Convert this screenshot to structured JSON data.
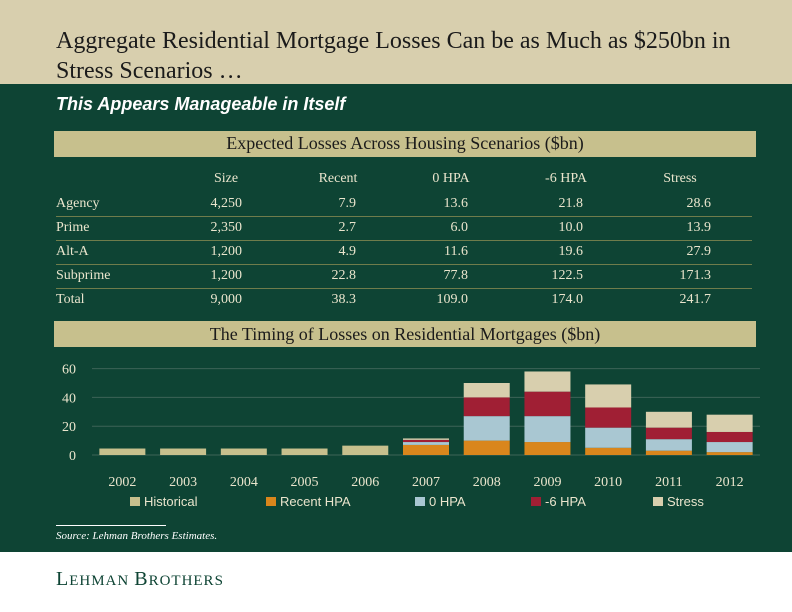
{
  "slide": {
    "title": "Aggregate Residential Mortgage Losses Can be as Much as $250bn in Stress Scenarios …",
    "subtitle": "This Appears Manageable in Itself",
    "source": "Source: Lehman Brothers Estimates.",
    "logo": {
      "first_initial": "L",
      "first_rest": "EHMAN",
      "second_initial": "B",
      "second_rest": "ROTHERS"
    }
  },
  "table": {
    "title": "Expected Losses Across Housing Scenarios ($bn)",
    "columns": [
      "Size",
      "Recent",
      "0 HPA",
      "-6 HPA",
      "Stress"
    ],
    "rows": [
      {
        "label": "Agency",
        "values": [
          "4,250",
          "7.9",
          "13.6",
          "21.8",
          "28.6"
        ]
      },
      {
        "label": "Prime",
        "values": [
          "2,350",
          "2.7",
          "6.0",
          "10.0",
          "13.9"
        ]
      },
      {
        "label": "Alt-A",
        "values": [
          "1,200",
          "4.9",
          "11.6",
          "19.6",
          "27.9"
        ]
      },
      {
        "label": "Subprime",
        "values": [
          "1,200",
          "22.8",
          "77.8",
          "122.5",
          "171.3"
        ]
      },
      {
        "label": "Total",
        "values": [
          "9,000",
          "38.3",
          "109.0",
          "174.0",
          "241.7"
        ]
      }
    ]
  },
  "chart_data": {
    "type": "bar",
    "stacked": true,
    "title": "The Timing of Losses on Residential Mortgages ($bn)",
    "categories": [
      "2002",
      "2003",
      "2004",
      "2005",
      "2006",
      "2007",
      "2008",
      "2009",
      "2010",
      "2011",
      "2012"
    ],
    "yticks": [
      0,
      20,
      40,
      60
    ],
    "ylim": [
      0,
      60
    ],
    "grid": true,
    "legend_position": "bottom",
    "series": [
      {
        "name": "Historical",
        "color": "#c7c08d",
        "values": [
          4.5,
          4.5,
          4.5,
          4.5,
          6.5,
          0,
          0,
          0,
          0,
          0,
          0
        ]
      },
      {
        "name": "Recent HPA",
        "color": "#d9861c",
        "values": [
          0,
          0,
          0,
          0,
          0,
          7,
          10,
          9,
          5,
          3,
          2
        ]
      },
      {
        "name": "0 HPA",
        "color": "#a9c7d2",
        "values": [
          0,
          0,
          0,
          0,
          0,
          2,
          17,
          18,
          14,
          8,
          7
        ]
      },
      {
        "name": "-6 HPA",
        "color": "#a01f34",
        "values": [
          0,
          0,
          0,
          0,
          0,
          1.5,
          13,
          17,
          14,
          8,
          7
        ]
      },
      {
        "name": "Stress",
        "color": "#d8cfae",
        "values": [
          0,
          0,
          0,
          0,
          0,
          1,
          10,
          14,
          16,
          11,
          12
        ]
      }
    ]
  }
}
